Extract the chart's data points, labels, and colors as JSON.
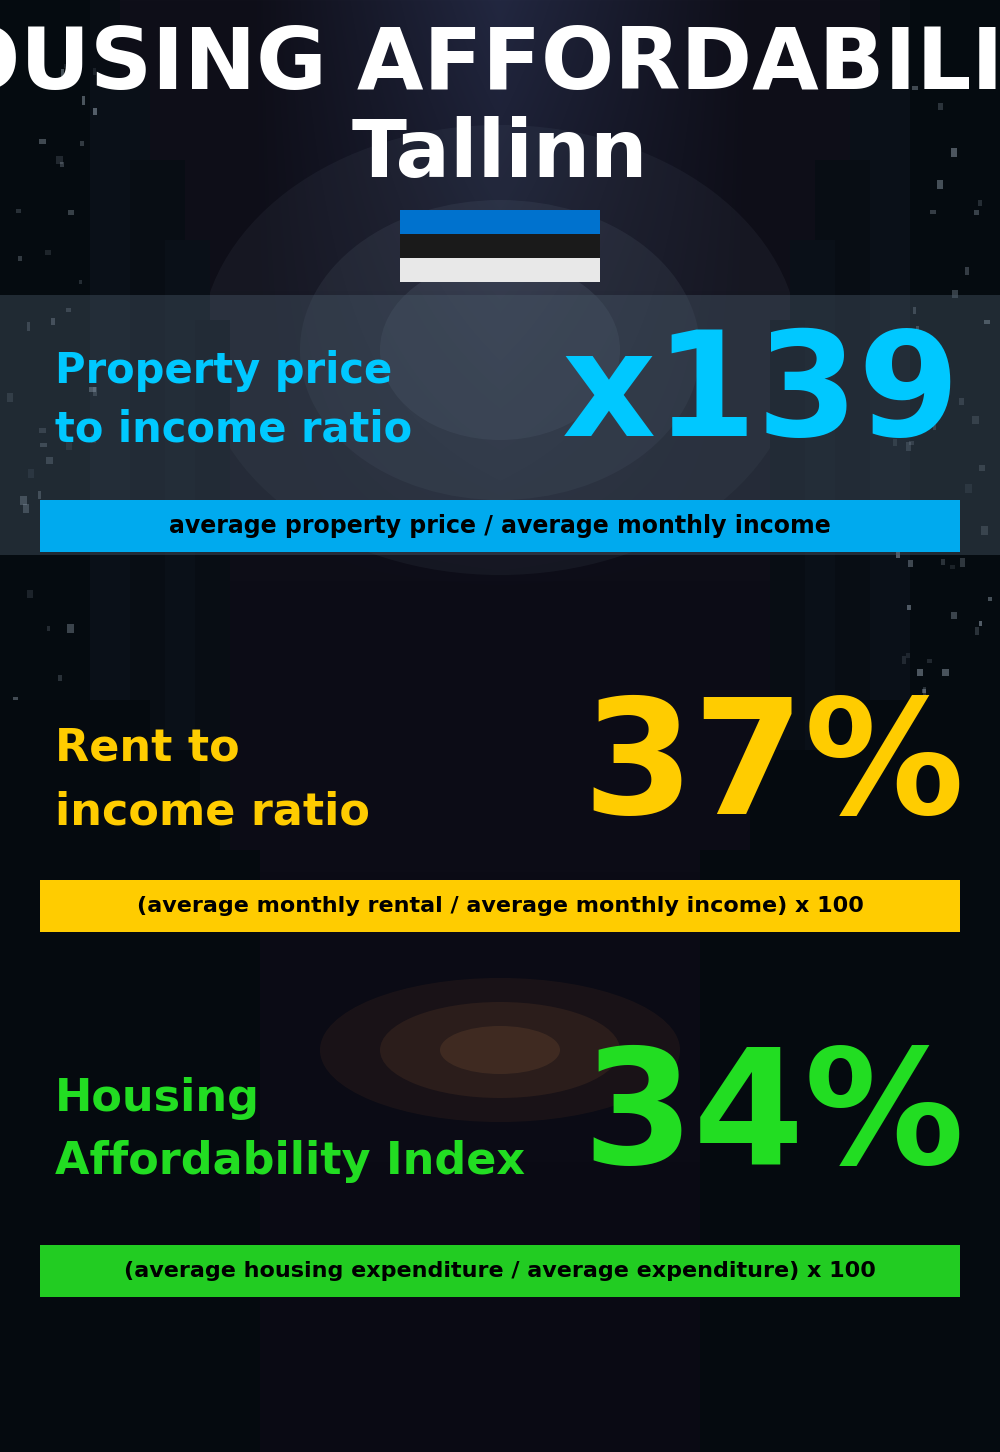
{
  "title_line1": "HOUSING AFFORDABILITY",
  "title_line2": "Tallinn",
  "bg_color": "#060d16",
  "title1_color": "#ffffff",
  "title2_color": "#ffffff",
  "section1_label": "Property price\nto income ratio",
  "section1_value": "x139",
  "section1_label_color": "#00c8ff",
  "section1_value_color": "#00c8ff",
  "section1_formula": "average property price / average monthly income",
  "section1_formula_bg": "#00aaee",
  "section1_formula_color": "#000000",
  "section2_label": "Rent to\nincome ratio",
  "section2_value": "37%",
  "section2_label_color": "#ffcc00",
  "section2_value_color": "#ffcc00",
  "section2_formula": "(average monthly rental / average monthly income) x 100",
  "section2_formula_bg": "#ffcc00",
  "section2_formula_color": "#000000",
  "section3_label": "Housing\nAffordability Index",
  "section3_value": "34%",
  "section3_label_color": "#22dd22",
  "section3_value_color": "#22dd22",
  "section3_formula": "(average housing expenditure / average expenditure) x 100",
  "section3_formula_bg": "#22cc22",
  "section3_formula_color": "#000000",
  "estonia_flag_colors": [
    "#0072ce",
    "#1a1a1a",
    "#e8e8e8"
  ],
  "panel1_color": "#2a3a4a",
  "panel1_alpha": 0.55,
  "panel2_alpha": 0.0,
  "panel3_alpha": 0.0,
  "fig_width": 10.0,
  "fig_height": 14.52
}
